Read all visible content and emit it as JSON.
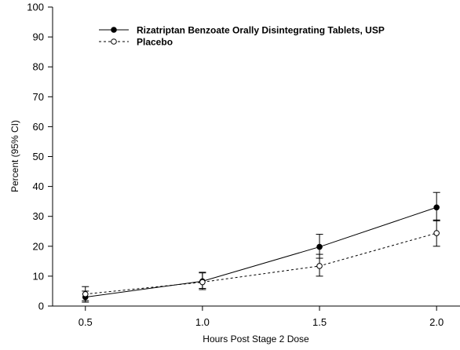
{
  "chart_data": {
    "type": "line",
    "xlabel": "Hours Post Stage 2 Dose",
    "ylabel": "Percent (95% CI)",
    "x": [
      0.5,
      1.0,
      1.5,
      2.0
    ],
    "x_tick_labels": [
      "0.5",
      "1.0",
      "1.5",
      "2.0"
    ],
    "xlim": [
      0.36,
      2.1
    ],
    "ylim": [
      0,
      100
    ],
    "y_ticks": [
      0,
      10,
      20,
      30,
      40,
      50,
      60,
      70,
      80,
      90,
      100
    ],
    "y_tick_labels": [
      "0",
      "10",
      "20",
      "30",
      "40",
      "50",
      "60",
      "70",
      "80",
      "90",
      "100"
    ],
    "grid": false,
    "legend_position": "top-left",
    "series": [
      {
        "name": "Rizatriptan Benzoate Orally Disintegrating Tablets, USP",
        "style": "solid",
        "marker": "filled-circle",
        "color": "#000000",
        "values": [
          3.0,
          8.3,
          19.8,
          33.0
        ],
        "ci_low": [
          1.3,
          5.5,
          16.0,
          28.5
        ],
        "ci_high": [
          5.0,
          11.3,
          24.0,
          38.0
        ]
      },
      {
        "name": "Placebo",
        "style": "dashed",
        "marker": "open-circle",
        "color": "#000000",
        "values": [
          4.0,
          8.0,
          13.4,
          24.4
        ],
        "ci_low": [
          1.8,
          5.9,
          10.0,
          20.0
        ],
        "ci_high": [
          6.5,
          11.1,
          17.3,
          28.8
        ]
      }
    ]
  }
}
